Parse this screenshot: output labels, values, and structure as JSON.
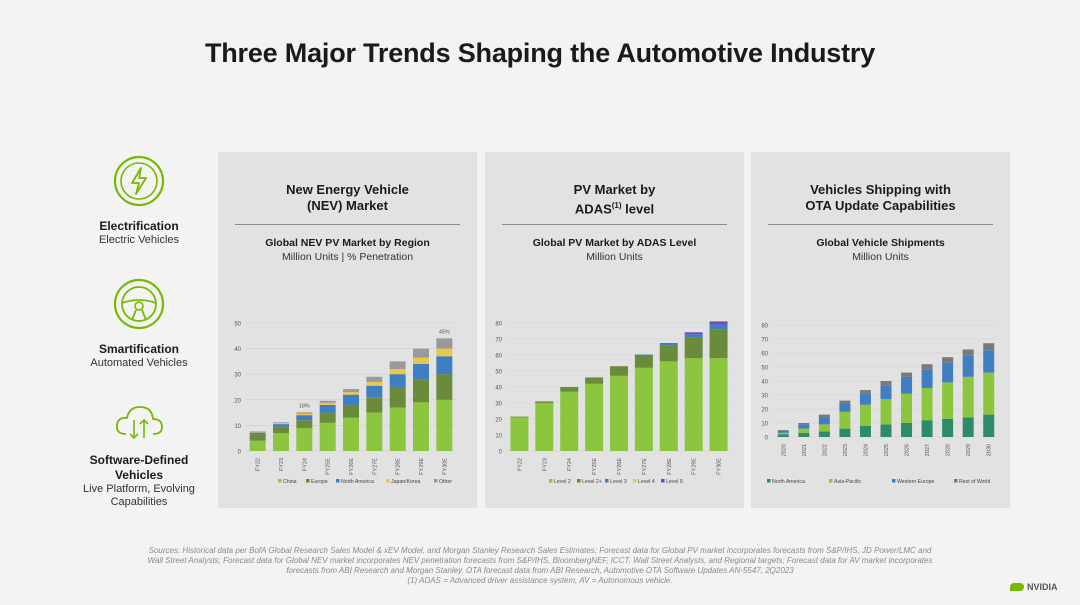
{
  "title": "Three Major Trends Shaping the Automotive Industry",
  "trends": [
    {
      "name": "Electrification",
      "sub": "Electric Vehicles",
      "icon": "lightning-icon"
    },
    {
      "name": "Smartification",
      "sub": "Automated Vehicles",
      "icon": "steering-wheel-icon"
    },
    {
      "name": "Software-Defined Vehicles",
      "sub": "Live Platform, Evolving Capabilities",
      "icon": "cloud-icon"
    }
  ],
  "panels": [
    {
      "title_line1": "New Energy Vehicle",
      "title_line2": "(NEV) Market",
      "chart_title": "Global NEV PV Market by Region",
      "chart_sub": "Million Units | % Penetration"
    },
    {
      "title_line1": "PV Market by",
      "title_line2_pre": "ADAS",
      "title_line2_sup": "(1)",
      "title_line2_post": " level",
      "chart_title": "Global PV Market by ADAS Level",
      "chart_sub": "Million Units"
    },
    {
      "title_line1": "Vehicles Shipping with",
      "title_line2": "OTA Update Capabilities",
      "chart_title": "Global Vehicle Shipments",
      "chart_sub": "Million Units"
    }
  ],
  "chart_data": [
    {
      "type": "bar",
      "stacked": true,
      "categories": [
        "FY22",
        "FY23",
        "FY24",
        "FY25E",
        "FY26E",
        "FY27E",
        "FY28E",
        "FY29E",
        "FY30E"
      ],
      "ylim": [
        0,
        50
      ],
      "yticks": [
        0,
        10,
        20,
        30,
        40,
        50
      ],
      "series": [
        {
          "name": "China",
          "color": "#8cc63e",
          "values": [
            4,
            7,
            9,
            11,
            13,
            15,
            17,
            19,
            20
          ]
        },
        {
          "name": "Europe",
          "color": "#6a8c3a",
          "values": [
            2.5,
            2.5,
            3,
            4,
            5,
            6,
            8,
            9,
            10
          ]
        },
        {
          "name": "North America",
          "color": "#3f7fc1",
          "values": [
            0.7,
            1,
            2,
            3,
            4,
            4.5,
            5,
            6,
            7
          ]
        },
        {
          "name": "Japan/Korea",
          "color": "#e8c84a",
          "values": [
            0.3,
            0.4,
            0.6,
            0.8,
            1,
            1.5,
            2,
            2.5,
            3
          ]
        },
        {
          "name": "Other",
          "color": "#9a9a9a",
          "values": [
            0.2,
            0.3,
            0.5,
            0.8,
            1.2,
            2,
            3,
            3.5,
            4
          ]
        }
      ],
      "annotations": [
        {
          "category": "FY24",
          "text": "18%"
        },
        {
          "category": "FY30E",
          "text": "45%"
        }
      ]
    },
    {
      "type": "bar",
      "stacked": true,
      "categories": [
        "FY22",
        "FY23",
        "FY24",
        "FY25E",
        "FY26E",
        "FY27E",
        "FY28E",
        "FY29E",
        "FY30E"
      ],
      "ylim": [
        0,
        80
      ],
      "yticks": [
        0,
        10,
        20,
        30,
        40,
        50,
        60,
        70,
        80
      ],
      "series": [
        {
          "name": "Level 2",
          "color": "#8cc63e",
          "values": [
            21,
            30,
            37,
            42,
            47,
            52,
            56,
            58,
            58
          ]
        },
        {
          "name": "Level 2+",
          "color": "#6a8c3a",
          "values": [
            0.5,
            1,
            3,
            4,
            6,
            8,
            10,
            13,
            18
          ]
        },
        {
          "name": "Level 3",
          "color": "#3f7fc1",
          "values": [
            0,
            0,
            0,
            0,
            0,
            0.3,
            1,
            2,
            3
          ]
        },
        {
          "name": "Level 4",
          "color": "#e8c84a",
          "values": [
            0,
            0,
            0,
            0,
            0,
            0,
            0,
            0,
            0
          ]
        },
        {
          "name": "Level 5",
          "color": "#6a4fb5",
          "values": [
            0,
            0,
            0,
            0,
            0,
            0,
            0.5,
            1.2,
            2
          ]
        }
      ]
    },
    {
      "type": "bar",
      "stacked": true,
      "categories": [
        "2020",
        "2021",
        "2022",
        "2023",
        "2024",
        "2025",
        "2026",
        "2027",
        "2028",
        "2029",
        "2030"
      ],
      "ylim": [
        0,
        80
      ],
      "yticks": [
        0,
        10,
        20,
        30,
        40,
        50,
        60,
        70,
        80
      ],
      "series": [
        {
          "name": "North America",
          "color": "#2e8b6a",
          "values": [
            2,
            3,
            4,
            6,
            8,
            9,
            10,
            12,
            13,
            14,
            16
          ]
        },
        {
          "name": "Asia-Pacific",
          "color": "#8cc63e",
          "values": [
            1,
            3,
            5,
            12,
            15,
            18,
            21,
            23,
            26,
            29,
            30
          ]
        },
        {
          "name": "Western Europe",
          "color": "#3f7fc1",
          "values": [
            1.5,
            3,
            5,
            6,
            8,
            10,
            12,
            13,
            14,
            15,
            16
          ]
        },
        {
          "name": "Rest of World",
          "color": "#7a7a7a",
          "values": [
            0.5,
            1,
            2,
            2,
            2.5,
            3,
            3,
            4,
            4,
            4.5,
            5
          ]
        }
      ]
    }
  ],
  "sources": "Sources: Historical data per BofA Global Research Sales Model & xEV Model, and Morgan Stanley Research Sales Estimates; Forecast data for Global PV market incorporates forecasts from S&P/IHS, JD Power/LMC and Wall Street Analysts; Forecast data for Global NEV market incorporates NEV penetration forecasts from S&P/IHS, BloombergNEF, ICCT, Wall Street Analysts, and Regional targets; Forecast data for AV market incorporates forecasts from ABI Research and Morgan Stanley. OTA forecast data from ABI Research, Automotive OTA Software Updates AN-5547, 2Q2023",
  "footnote": "(1)  ADAS = Advanced driver assistance system, AV = Autonomous vehicle.",
  "brand": "NVIDIA"
}
